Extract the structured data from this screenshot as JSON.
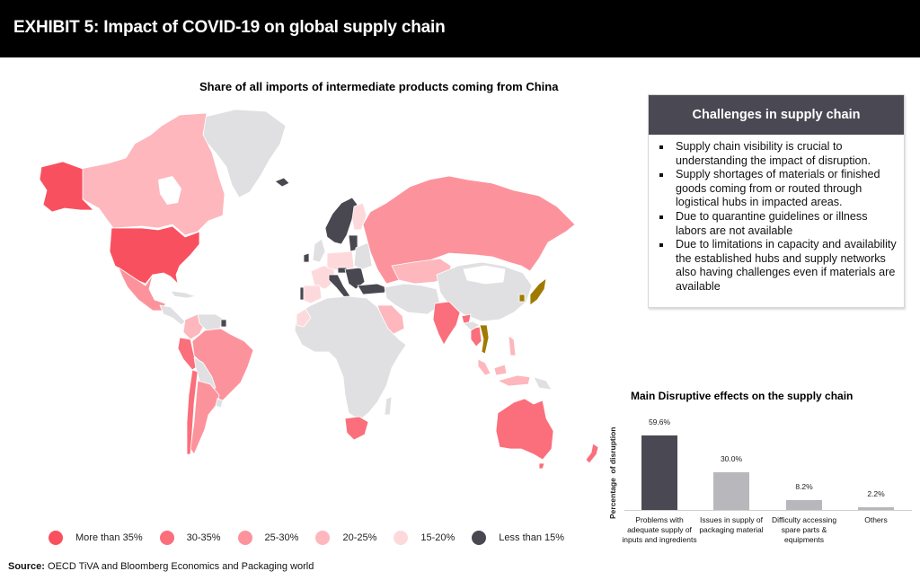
{
  "header": {
    "title": "EXHIBIT 5: Impact of COVID-19 on global supply chain"
  },
  "map": {
    "title": "Share of all imports of intermediate products coming  from China",
    "legend": [
      {
        "label": "More than 35%",
        "color": "#f9505f"
      },
      {
        "label": "30-35%",
        "color": "#fb6e7b"
      },
      {
        "label": "25-30%",
        "color": "#fc939c"
      },
      {
        "label": "20-25%",
        "color": "#fdb7bd"
      },
      {
        "label": "15-20%",
        "color": "#fed9dc"
      },
      {
        "label": "Less than 15%",
        "color": "#494850"
      }
    ],
    "colors": {
      "no_data": "#e0e0e2",
      "highlight": "#a07a00"
    }
  },
  "challenges": {
    "title": "Challenges in supply chain",
    "items": [
      "Supply chain visibility is crucial to understanding the impact of disruption.",
      "Supply shortages of materials or finished goods coming from or routed through logistical hubs in impacted areas.",
      "Due to quarantine guidelines or illness labors are not available",
      "Due to limitations in capacity and availability the established hubs and supply networks also having challenges even if materials are available"
    ]
  },
  "chart_data": {
    "type": "bar",
    "title": "Main Disruptive effects on the supply chain",
    "xlabel": "",
    "ylabel": "Percentage  of disruption",
    "categories": [
      "Problems with adequate supply of inputs and ingredients",
      "Issues in supply of packaging material",
      "Difficulty accessing spare parts & equipments",
      "Others"
    ],
    "values": [
      59.6,
      30.0,
      8.2,
      2.2
    ],
    "value_labels": [
      "59.6%",
      "30.0%",
      "8.2%",
      "2.2%"
    ],
    "colors": [
      "#4a4953",
      "#b8b8bc",
      "#b8b8bc",
      "#b8b8bc"
    ],
    "ylim": [
      0,
      60
    ],
    "grid": false,
    "legend": "none"
  },
  "source": {
    "label": "Source:",
    "text": " OECD TiVA and Bloomberg Economics and Packaging world"
  }
}
